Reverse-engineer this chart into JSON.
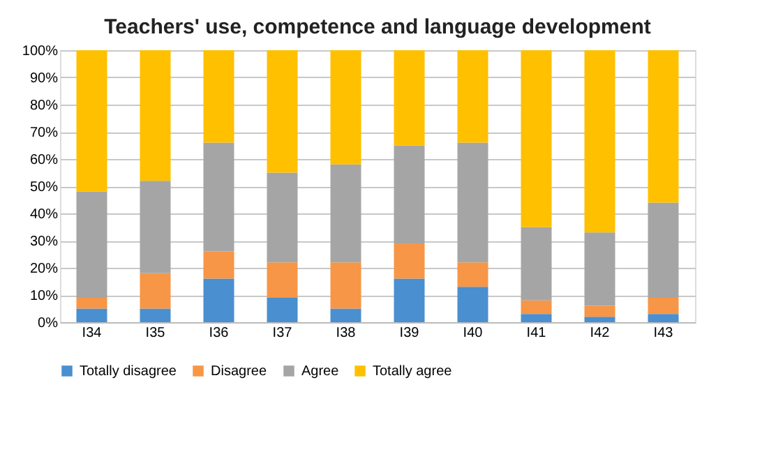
{
  "chart_data": {
    "type": "bar",
    "title": "Teachers' use, competence and language development",
    "categories": [
      "I34",
      "I35",
      "I36",
      "I37",
      "I38",
      "I39",
      "I40",
      "I41",
      "I42",
      "I43"
    ],
    "stacked": true,
    "series": [
      {
        "name": "Totally disagree",
        "color": "#4a8fd0",
        "values": [
          5,
          5,
          16,
          9,
          5,
          16,
          13,
          3,
          2,
          3
        ]
      },
      {
        "name": "Disagree",
        "color": "#f79646",
        "values": [
          4,
          13,
          10,
          13,
          17,
          13,
          9,
          5,
          4,
          6
        ]
      },
      {
        "name": "Agree",
        "color": "#a5a5a5",
        "values": [
          39,
          34,
          40,
          33,
          36,
          36,
          44,
          27,
          27,
          35
        ]
      },
      {
        "name": "Totally agree",
        "color": "#ffc000",
        "values": [
          52,
          48,
          34,
          45,
          42,
          35,
          34,
          65,
          67,
          56
        ]
      }
    ],
    "ylim": [
      0,
      100
    ],
    "yticks": [
      {
        "value": 0,
        "label": "0%"
      },
      {
        "value": 10,
        "label": "10%"
      },
      {
        "value": 20,
        "label": "20%"
      },
      {
        "value": 30,
        "label": "30%"
      },
      {
        "value": 40,
        "label": "40%"
      },
      {
        "value": 50,
        "label": "50%"
      },
      {
        "value": 60,
        "label": "60%"
      },
      {
        "value": 70,
        "label": "70%"
      },
      {
        "value": 80,
        "label": "80%"
      },
      {
        "value": 90,
        "label": "90%"
      },
      {
        "value": 100,
        "label": "100%"
      }
    ],
    "grid": "y",
    "legend": "bottom"
  }
}
